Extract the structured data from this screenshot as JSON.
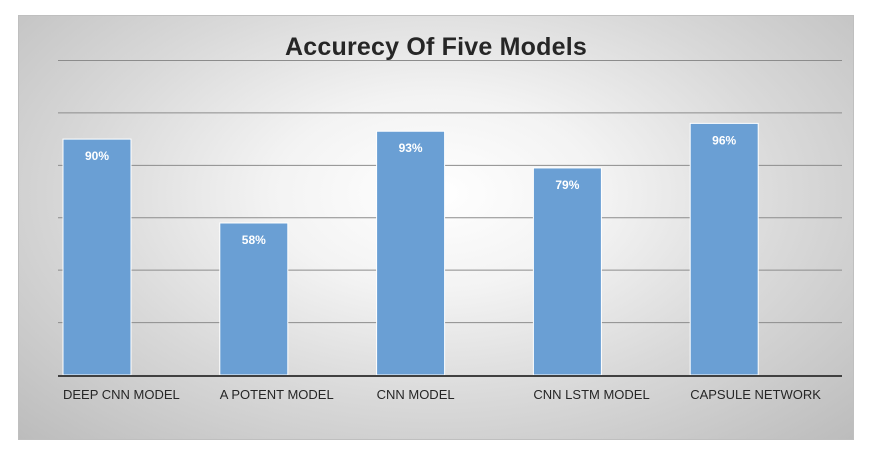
{
  "chart_data": {
    "type": "bar",
    "title": "Accurecy Of Five Models",
    "xlabel": "",
    "ylabel": "",
    "categories": [
      "DEEP CNN MODEL",
      "A POTENT MODEL",
      "CNN MODEL",
      "CNN LSTM MODEL",
      "CAPSULE NETWORK"
    ],
    "values": [
      90,
      58,
      93,
      79,
      96
    ],
    "data_labels": [
      "90%",
      "58%",
      "93%",
      "79%",
      "96%"
    ],
    "ylim": [
      0,
      120
    ],
    "grid": true,
    "legend": "none",
    "colors": {
      "bar": "#6a9fd4",
      "bar_edge": "#ffffff",
      "label": "#ffffff",
      "axis": "#404040",
      "grid": "#8c8c8c",
      "tick_text": "#262626"
    }
  }
}
